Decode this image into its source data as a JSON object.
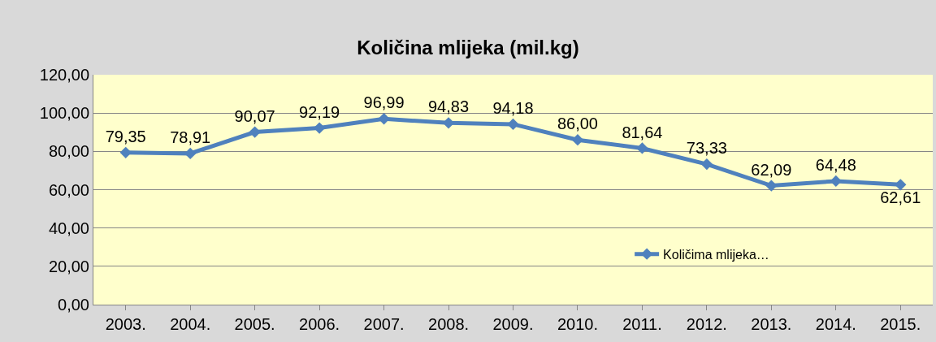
{
  "chart_data": {
    "type": "line",
    "title": "Količina mlijeka (mil.kg)",
    "categories": [
      "2003.",
      "2004.",
      "2005.",
      "2006.",
      "2007.",
      "2008.",
      "2009.",
      "2010.",
      "2011.",
      "2012.",
      "2013.",
      "2014.",
      "2015."
    ],
    "series": [
      {
        "name": "Količima mlijeka…",
        "color": "#4f81bd",
        "values": [
          79.35,
          78.91,
          90.07,
          92.19,
          96.99,
          94.83,
          94.18,
          86.0,
          81.64,
          73.33,
          62.09,
          64.48,
          62.61
        ],
        "value_labels": [
          "79,35",
          "78,91",
          "90,07",
          "92,19",
          "96,99",
          "94,83",
          "94,18",
          "86,00",
          "81,64",
          "73,33",
          "62,09",
          "64,48",
          "62,61"
        ]
      }
    ],
    "ylim": [
      0,
      120
    ],
    "yticks": [
      {
        "value": 0,
        "label": "0,00"
      },
      {
        "value": 20,
        "label": "20,00"
      },
      {
        "value": 40,
        "label": "40,00"
      },
      {
        "value": 60,
        "label": "60,00"
      },
      {
        "value": 80,
        "label": "80,00"
      },
      {
        "value": 100,
        "label": "100,00"
      },
      {
        "value": 120,
        "label": "120,00"
      }
    ],
    "grid": "y",
    "legend": "bottom right",
    "marker": "diamond",
    "line_style": "solid"
  }
}
